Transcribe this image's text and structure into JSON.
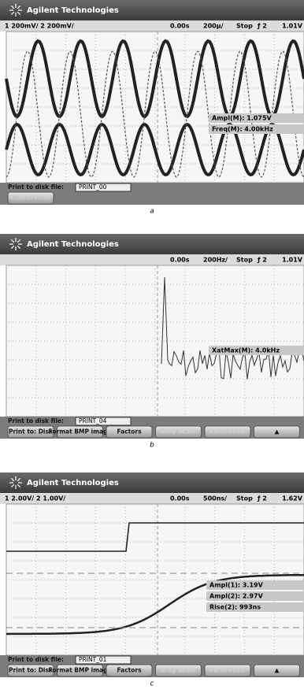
{
  "panels": [
    {
      "header": "Agilent Technologies",
      "channels": "1 200mV/  2 200mV/",
      "time": "0.00s",
      "timebase": "200µ/",
      "status": "Stop",
      "trigger": "ƒ 2",
      "level": "1.01V",
      "measurements": [
        "Ampl(M): 1.075V",
        "Freq(M): 4.00kHz"
      ],
      "file_label": "Print to disk file:",
      "file_name": "PRINT_00",
      "buttons": [
        "Cancel Print"
      ],
      "caption": "a"
    },
    {
      "header": "Agilent Technologies",
      "time": "0.00s",
      "timebase": "200Hz/",
      "status": "Stop",
      "trigger": "ƒ 2",
      "level": "1.01V",
      "measurements": [
        "XatMax(M): 4.0kHz"
      ],
      "file_label": "Print to disk file:",
      "file_name": "PRINT_04",
      "buttons": [
        "Print to: Disk",
        "Format BMP image",
        "Factors",
        "Gray Scale",
        "Form Feed",
        "▲"
      ],
      "caption": "b"
    },
    {
      "header": "Agilent Technologies",
      "channels": "1 2.00V/  2 1.00V/",
      "time": "0.00s",
      "timebase": "500ns/",
      "status": "Stop",
      "trigger": "ƒ 2",
      "level": "1.62V",
      "measurements": [
        "Ampl(1): 3.19V",
        "Ampl(2): 2.97V",
        "Rise(2): 993ns"
      ],
      "file_label": "Print to disk file:",
      "file_name": "PRINT_01",
      "buttons": [
        "Print to: Disk",
        "Format BMP image",
        "Factors",
        "Gray Scale",
        "Form Feed",
        "▲"
      ],
      "caption": "c"
    }
  ]
}
